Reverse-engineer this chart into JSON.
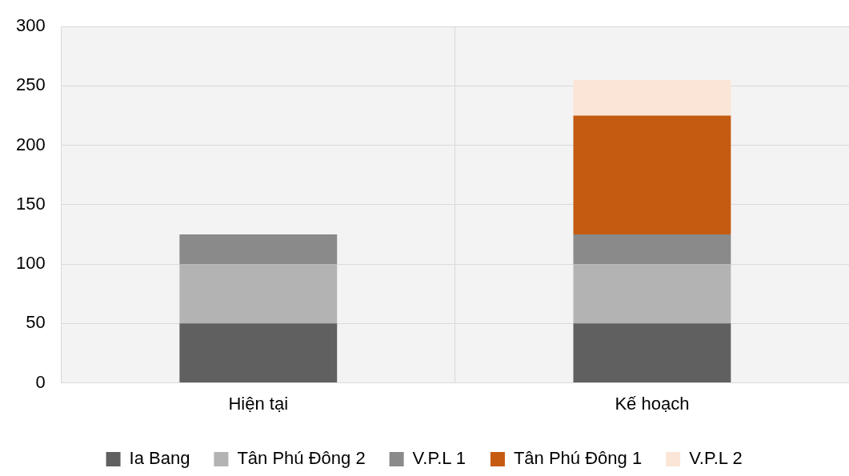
{
  "chart_data": {
    "type": "bar",
    "stacked": true,
    "categories": [
      "Hiện tại",
      "Kế hoạch"
    ],
    "series": [
      {
        "name": "Ia Bang",
        "color": "#606060",
        "values": [
          50,
          50
        ]
      },
      {
        "name": "Tân Phú Đông 2",
        "color": "#b3b3b3",
        "values": [
          50,
          50
        ]
      },
      {
        "name": "V.P.L 1",
        "color": "#8a8a8a",
        "values": [
          25,
          25
        ]
      },
      {
        "name": "Tân Phú Đông 1",
        "color": "#c55a11",
        "values": [
          null,
          100
        ]
      },
      {
        "name": "V.P.L 2",
        "color": "#fbe5d6",
        "values": [
          null,
          30
        ]
      }
    ],
    "ylim": [
      0,
      300
    ],
    "yticks": [
      0,
      50,
      100,
      150,
      200,
      250,
      300
    ],
    "grid": true,
    "legend": "bottom"
  }
}
